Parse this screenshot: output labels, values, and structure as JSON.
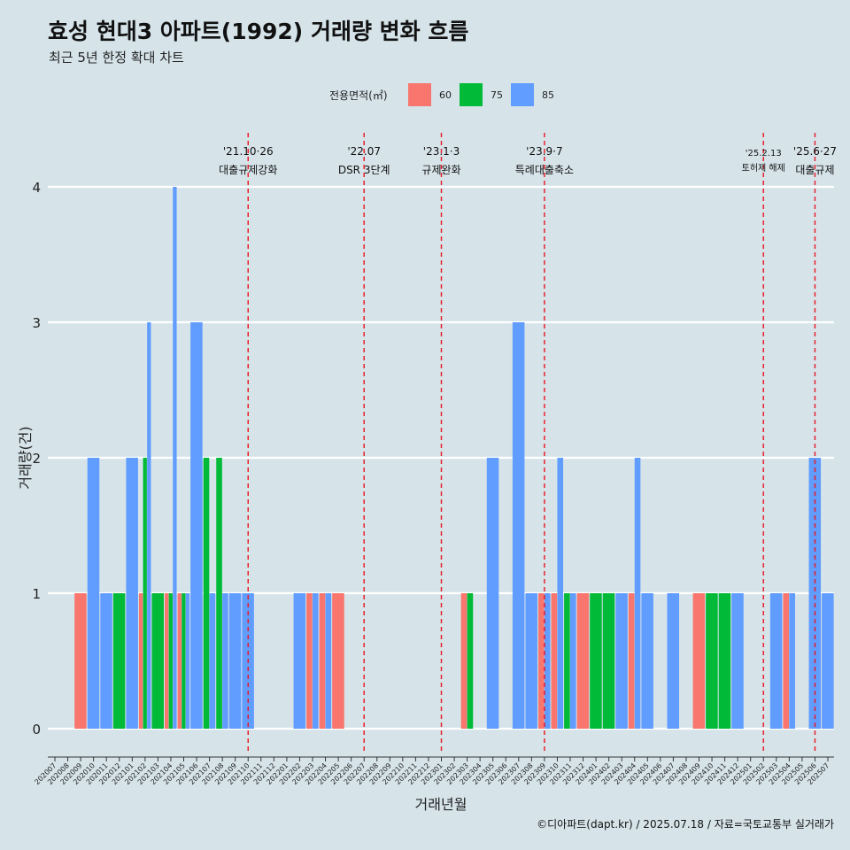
{
  "chart_data": {
    "type": "bar",
    "title": "효성 현대3 아파트(1992) 거래량 변화 흐름",
    "subtitle": "최근 5년 한정 확대 차트",
    "xlabel": "거래년월",
    "ylabel": "거래량(건)",
    "ylim": [
      0,
      4
    ],
    "yticks": [
      0,
      1,
      2,
      3,
      4
    ],
    "grid": true,
    "legend_position": "top",
    "legend": {
      "title": "전용면적(㎡)",
      "entries": [
        {
          "label": "60",
          "color": "#F8766D"
        },
        {
          "label": "75",
          "color": "#00BA38"
        },
        {
          "label": "85",
          "color": "#619CFF"
        }
      ]
    },
    "categories": [
      "202007",
      "202008",
      "202009",
      "202010",
      "202011",
      "202012",
      "202101",
      "202102",
      "202103",
      "202104",
      "202105",
      "202106",
      "202107",
      "202108",
      "202109",
      "202110",
      "202111",
      "202112",
      "202201",
      "202202",
      "202203",
      "202204",
      "202205",
      "202206",
      "202207",
      "202208",
      "202209",
      "202210",
      "202211",
      "202212",
      "202301",
      "202302",
      "202303",
      "202304",
      "202305",
      "202306",
      "202307",
      "202308",
      "202309",
      "202310",
      "202311",
      "202312",
      "202401",
      "202402",
      "202403",
      "202404",
      "202405",
      "202406",
      "202407",
      "202408",
      "202409",
      "202410",
      "202411",
      "202412",
      "202501",
      "202502",
      "202503",
      "202504",
      "202505",
      "202506",
      "202507"
    ],
    "bars": [
      {
        "month": "202009",
        "area": "60",
        "count": 1
      },
      {
        "month": "202010",
        "area": "85",
        "count": 2
      },
      {
        "month": "202011",
        "area": "85",
        "count": 1
      },
      {
        "month": "202012",
        "area": "75",
        "count": 1
      },
      {
        "month": "202101",
        "area": "85",
        "count": 2
      },
      {
        "month": "202102",
        "area": "60",
        "count": 1
      },
      {
        "month": "202102",
        "area": "75",
        "count": 2
      },
      {
        "month": "202102",
        "area": "85",
        "count": 3
      },
      {
        "month": "202103",
        "area": "75",
        "count": 1
      },
      {
        "month": "202104",
        "area": "60",
        "count": 1
      },
      {
        "month": "202104",
        "area": "75",
        "count": 1
      },
      {
        "month": "202104",
        "area": "85",
        "count": 4
      },
      {
        "month": "202105",
        "area": "60",
        "count": 1
      },
      {
        "month": "202105",
        "area": "75",
        "count": 1
      },
      {
        "month": "202105",
        "area": "85",
        "count": 1
      },
      {
        "month": "202106",
        "area": "85",
        "count": 3
      },
      {
        "month": "202107",
        "area": "75",
        "count": 2
      },
      {
        "month": "202107",
        "area": "85",
        "count": 1
      },
      {
        "month": "202108",
        "area": "75",
        "count": 2
      },
      {
        "month": "202108",
        "area": "85",
        "count": 1
      },
      {
        "month": "202109",
        "area": "85",
        "count": 1
      },
      {
        "month": "202110",
        "area": "85",
        "count": 1
      },
      {
        "month": "202202",
        "area": "85",
        "count": 1
      },
      {
        "month": "202203",
        "area": "60",
        "count": 1
      },
      {
        "month": "202203",
        "area": "85",
        "count": 1
      },
      {
        "month": "202204",
        "area": "60",
        "count": 1
      },
      {
        "month": "202204",
        "area": "85",
        "count": 1
      },
      {
        "month": "202205",
        "area": "60",
        "count": 1
      },
      {
        "month": "202303",
        "area": "60",
        "count": 1
      },
      {
        "month": "202303",
        "area": "75",
        "count": 1
      },
      {
        "month": "202305",
        "area": "85",
        "count": 2
      },
      {
        "month": "202307",
        "area": "85",
        "count": 3
      },
      {
        "month": "202308",
        "area": "85",
        "count": 1
      },
      {
        "month": "202309",
        "area": "60",
        "count": 1
      },
      {
        "month": "202309",
        "area": "85",
        "count": 1
      },
      {
        "month": "202310",
        "area": "60",
        "count": 1
      },
      {
        "month": "202310",
        "area": "85",
        "count": 2
      },
      {
        "month": "202311",
        "area": "75",
        "count": 1
      },
      {
        "month": "202311",
        "area": "85",
        "count": 1
      },
      {
        "month": "202312",
        "area": "60",
        "count": 1
      },
      {
        "month": "202401",
        "area": "75",
        "count": 1
      },
      {
        "month": "202402",
        "area": "75",
        "count": 1
      },
      {
        "month": "202403",
        "area": "85",
        "count": 1
      },
      {
        "month": "202404",
        "area": "60",
        "count": 1
      },
      {
        "month": "202404",
        "area": "85",
        "count": 2
      },
      {
        "month": "202405",
        "area": "85",
        "count": 1
      },
      {
        "month": "202407",
        "area": "85",
        "count": 1
      },
      {
        "month": "202409",
        "area": "60",
        "count": 1
      },
      {
        "month": "202410",
        "area": "75",
        "count": 1
      },
      {
        "month": "202411",
        "area": "75",
        "count": 1
      },
      {
        "month": "202412",
        "area": "85",
        "count": 1
      },
      {
        "month": "202503",
        "area": "85",
        "count": 1
      },
      {
        "month": "202504",
        "area": "60",
        "count": 1
      },
      {
        "month": "202504",
        "area": "85",
        "count": 1
      },
      {
        "month": "202506",
        "area": "85",
        "count": 2
      },
      {
        "month": "202507",
        "area": "85",
        "count": 1
      }
    ],
    "events": [
      {
        "month": "202110",
        "date": "'21.10·26",
        "label": "대출규제강화",
        "small": false
      },
      {
        "month": "202207",
        "date": "'22.07",
        "label": "DSR 3단계",
        "small": false
      },
      {
        "month": "202301",
        "date": "'23.1·3",
        "label": "규제완화",
        "small": false
      },
      {
        "month": "202309",
        "date": "'23.9·7",
        "label": "특례대출축소",
        "small": false
      },
      {
        "month": "202502",
        "date": "'25.2.13",
        "label": "토허제 해제",
        "small": true
      },
      {
        "month": "202506",
        "date": "'25.6·27",
        "label": "대출규제",
        "small": false
      }
    ],
    "event_line_color": "#E8202A"
  },
  "caption": "©디아파트(dapt.kr) / 2025.07.18 / 자료=국토교통부 실거래가"
}
